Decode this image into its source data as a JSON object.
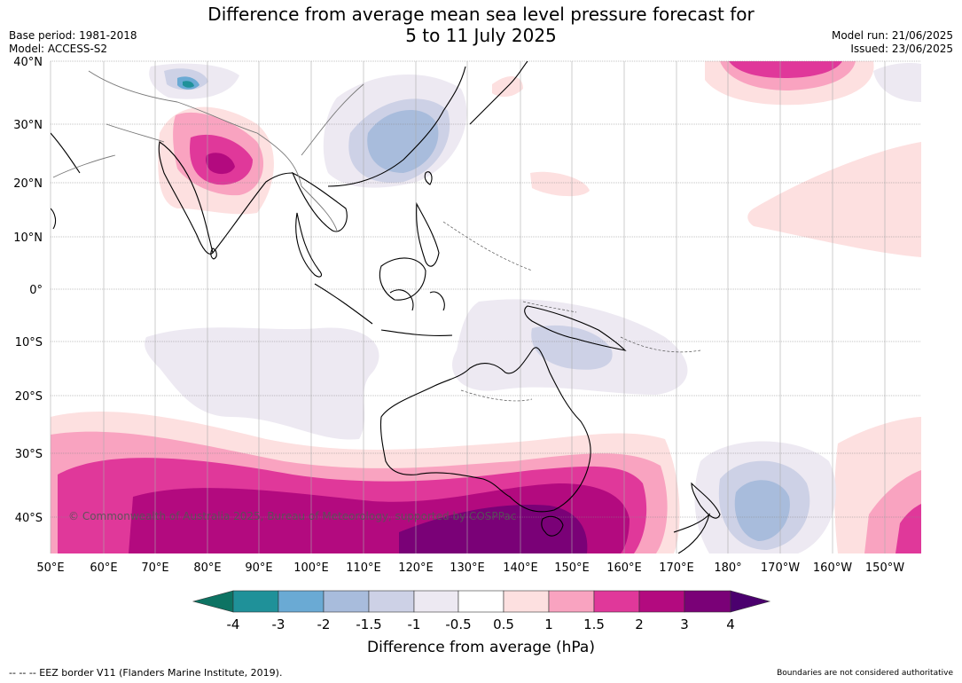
{
  "header": {
    "title_line1": "Difference from average mean sea level pressure forecast for",
    "title_line2": "5 to 11 July 2025",
    "base_period": "Base period: 1981-2018",
    "model": "Model: ACCESS-S2",
    "model_run": "Model run: 21/06/2025",
    "issued": "Issued: 23/06/2025"
  },
  "map": {
    "lon_labels": [
      "50°E",
      "60°E",
      "70°E",
      "80°E",
      "90°E",
      "100°E",
      "110°E",
      "120°E",
      "130°E",
      "140°E",
      "150°E",
      "160°E",
      "170°E",
      "180°",
      "170°W",
      "160°W",
      "150°W"
    ],
    "lat_labels": [
      "40°N",
      "30°N",
      "20°N",
      "10°N",
      "0°",
      "10°S",
      "20°S",
      "30°S",
      "40°S"
    ],
    "copyright": "© Commonwealth of Australia 2025, Bureau of Meteorology, supported by COSPPac",
    "colors": {
      "neg4": "#0d7363",
      "neg3": "#1f9199",
      "neg2": "#6aaad4",
      "neg15": "#a8bcdc",
      "neg1": "#cdd1e6",
      "neg05": "#ede9f2",
      "zero": "#ffffff",
      "pos05": "#fde0e0",
      "pos1": "#f9a3c0",
      "pos15": "#e0389a",
      "pos2": "#b30a7f",
      "pos3": "#7a0177",
      "pos4": "#4b006e"
    }
  },
  "colorbar": {
    "ticks": [
      "-4",
      "-3",
      "-2",
      "-1.5",
      "-1",
      "-0.5",
      "0.5",
      "1",
      "1.5",
      "2",
      "3",
      "4"
    ],
    "label": "Difference from average (hPa)"
  },
  "footer": {
    "eez": "--  --  -- EEZ border V11 (Flanders Marine Institute, 2019).",
    "disclaimer": "Boundaries are not considered authoritative"
  }
}
